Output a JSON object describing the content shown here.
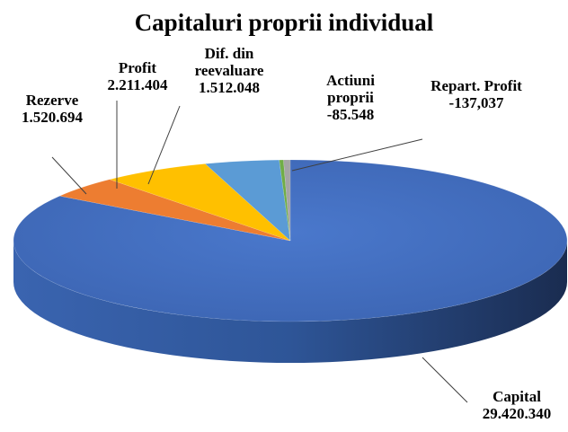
{
  "chart_data": {
    "type": "pie3d",
    "title": "Capitaluri proprii individual",
    "categories": [
      "Capital",
      "Rezerve",
      "Profit",
      "Dif. din reevaluare",
      "Actiuni proprii",
      "Repart. Profit"
    ],
    "values": [
      29420340,
      1520694,
      2211404,
      1512048,
      -85548,
      -137037
    ],
    "value_labels": [
      "29.420.340",
      "1.520.694",
      "2.211.404",
      "1.512.048",
      "-85.548",
      "-137,037"
    ],
    "colors": [
      "#4472c4",
      "#ed7d31",
      "#ffc000",
      "#5b9bd5",
      "#70ad47",
      "#a5a5a5"
    ]
  }
}
